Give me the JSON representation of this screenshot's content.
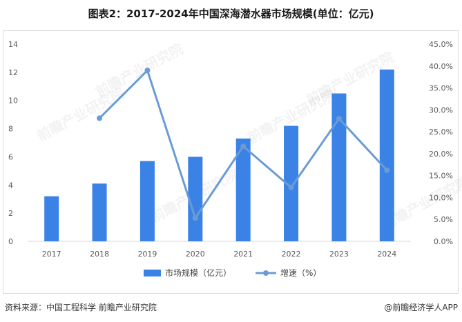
{
  "header": {
    "title": "图表2：2017-2024年中国深海潜水器市场规模(单位：亿元)"
  },
  "footer": {
    "source": "资料来源：中国工程科学 前瞻产业研究院",
    "credit": "@前瞻经济学人APP"
  },
  "chart_data": {
    "type": "bar",
    "categories": [
      "2017",
      "2018",
      "2019",
      "2020",
      "2021",
      "2022",
      "2023",
      "2024"
    ],
    "series": [
      {
        "name": "市场规模（亿元）",
        "kind": "bar",
        "axis": "left",
        "color": "#3b82e6",
        "values": [
          3.2,
          4.1,
          5.7,
          6.0,
          7.3,
          8.2,
          10.5,
          12.2
        ]
      },
      {
        "name": "增速（%）",
        "kind": "line",
        "axis": "right",
        "color": "#6a9bd6",
        "values": [
          null,
          28.1,
          39.0,
          5.3,
          21.7,
          12.3,
          28.0,
          16.2
        ]
      }
    ],
    "y_left": {
      "min": 0,
      "max": 14,
      "ticks": [
        "0",
        "2",
        "4",
        "6",
        "8",
        "10",
        "12",
        "14"
      ]
    },
    "y_right": {
      "min": 0,
      "max": 45,
      "ticks": [
        "0.0%",
        "5.0%",
        "10.0%",
        "15.0%",
        "20.0%",
        "25.0%",
        "30.0%",
        "35.0%",
        "40.0%",
        "45.0%"
      ]
    },
    "grid": false,
    "legend_position": "bottom",
    "watermark": "前瞻产业研究院"
  }
}
